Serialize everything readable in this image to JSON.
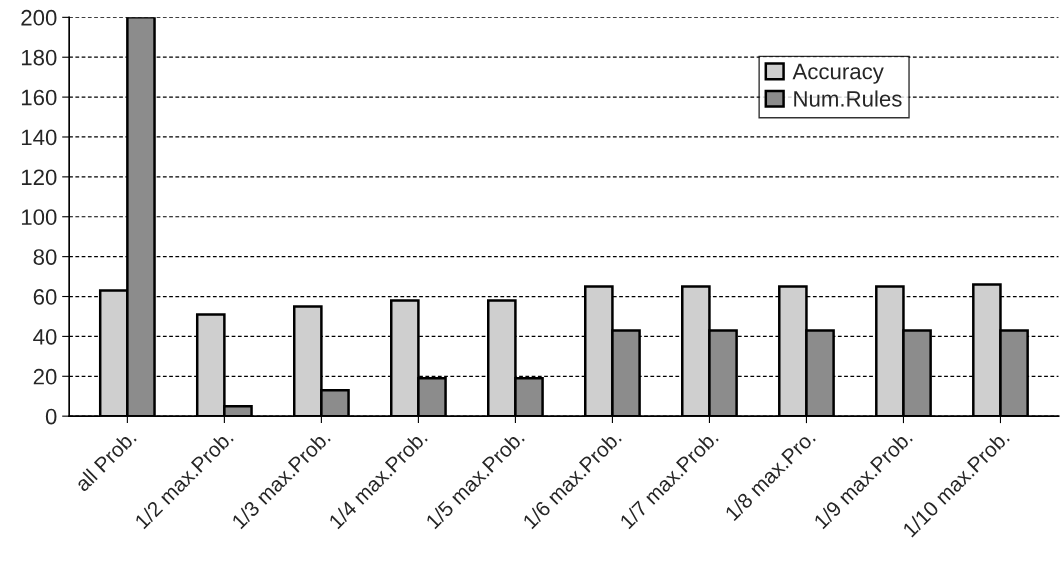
{
  "chart_data": {
    "type": "bar",
    "categories": [
      "all Prob.",
      "1/2 max.Prob.",
      "1/3 max.Prob.",
      "1/4 max.Prob.",
      "1/5 max.Prob.",
      "1/6 max.Prob.",
      "1/7 max.Prob.",
      "1/8 max.Pro.",
      "1/9 max.Prob.",
      "1/10 max.Prob."
    ],
    "series": [
      {
        "name": "Accuracy",
        "color": "#cfcfcf",
        "values": [
          63,
          51,
          55,
          58,
          58,
          65,
          65,
          65,
          65,
          66
        ]
      },
      {
        "name": "Num.Rules",
        "color": "#8c8c8c",
        "values": [
          200,
          5,
          13,
          19,
          19,
          43,
          43,
          43,
          43,
          43
        ]
      }
    ],
    "ylim": [
      0,
      200
    ],
    "yticks": [
      0,
      20,
      40,
      60,
      80,
      100,
      120,
      140,
      160,
      180,
      200
    ],
    "grid": "y",
    "legend": "top right"
  }
}
